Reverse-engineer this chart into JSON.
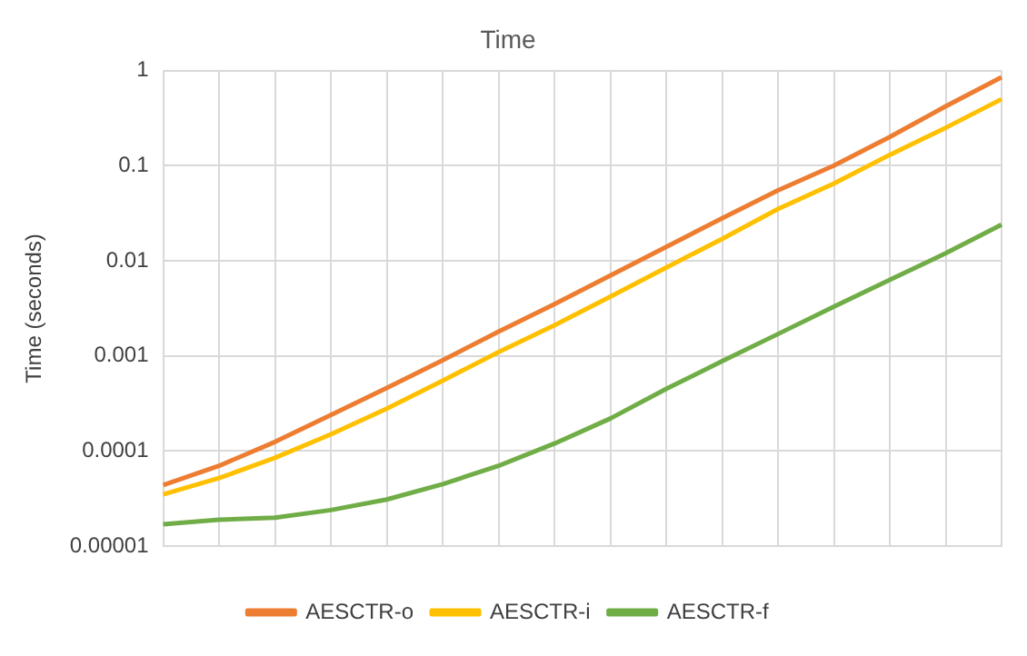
{
  "chart_data": {
    "type": "line",
    "title": "Time",
    "ylabel": "Time (seconds)",
    "categories": [
      null,
      null,
      null,
      null,
      null,
      null,
      null,
      null,
      null,
      null,
      null,
      null,
      null,
      null,
      null,
      null
    ],
    "series": [
      {
        "name": "AESCTR-o",
        "color": "#ed7d31",
        "values": [
          4.4e-05,
          7e-05,
          0.000125,
          0.00024,
          0.00046,
          0.0009,
          0.0018,
          0.0035,
          0.007,
          0.014,
          0.028,
          0.055,
          0.1,
          0.2,
          0.42,
          0.85
        ]
      },
      {
        "name": "AESCTR-i",
        "color": "#ffc000",
        "values": [
          3.5e-05,
          5.2e-05,
          8.5e-05,
          0.00015,
          0.00028,
          0.00055,
          0.0011,
          0.0021,
          0.0042,
          0.0085,
          0.017,
          0.035,
          0.065,
          0.13,
          0.25,
          0.5
        ]
      },
      {
        "name": "AESCTR-f",
        "color": "#70ad47",
        "values": [
          1.7e-05,
          1.9e-05,
          2e-05,
          2.4e-05,
          3.1e-05,
          4.5e-05,
          7e-05,
          0.00012,
          0.00022,
          0.00045,
          0.00088,
          0.0017,
          0.0033,
          0.0063,
          0.012,
          0.024
        ]
      }
    ],
    "log": "y",
    "ylim": [
      1e-05,
      1
    ],
    "yticks": [
      {
        "value": 1e-05,
        "label": "0.00001"
      },
      0.0001,
      0.001,
      0.01,
      0.1,
      1
    ],
    "grid": true,
    "legend": "bottom",
    "marker": "none",
    "line_style": "solid"
  }
}
